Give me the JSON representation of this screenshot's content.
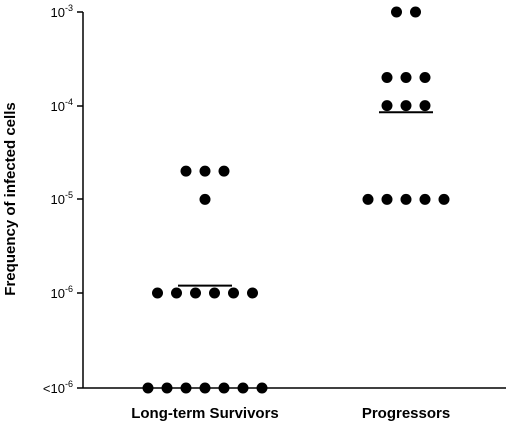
{
  "chart_data": {
    "type": "scatter",
    "ylabel": "Frequency of infected cells",
    "yscale": "log",
    "ylim": [
      "<10^-6",
      "10^-3"
    ],
    "y_tick_labels": [
      {
        "base": "10",
        "exp": "-3"
      },
      {
        "base": "10",
        "exp": "-4"
      },
      {
        "base": "10",
        "exp": "-5"
      },
      {
        "base": "10",
        "exp": "-6"
      },
      {
        "base": "<10",
        "exp": "-6"
      }
    ],
    "categories": [
      "Long-term Survivors",
      "Progressors"
    ],
    "series": [
      {
        "category": "Long-term Survivors",
        "points": [
          {
            "value": "2e-5",
            "count": 3
          },
          {
            "value": "1e-5",
            "count": 1
          },
          {
            "value": "1e-6",
            "count": 6
          },
          {
            "value": "<1e-6",
            "count": 7
          }
        ],
        "median": 1.2e-06
      },
      {
        "category": "Progressors",
        "points": [
          {
            "value": "1e-3",
            "count": 2
          },
          {
            "value": "2e-4",
            "count": 3
          },
          {
            "value": "1e-4",
            "count": 3
          },
          {
            "value": "1e-5",
            "count": 5
          }
        ],
        "median": 8.5e-05
      }
    ],
    "grid": false,
    "legend": "none"
  }
}
